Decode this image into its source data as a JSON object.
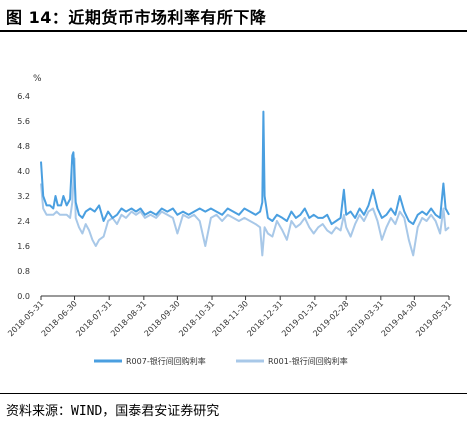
{
  "title": "图 14：近期货币市场利率有所下降",
  "source": "资料来源：WIND，国泰君安证券研究",
  "chart_data": {
    "type": "line",
    "unit_label": "%",
    "ylim": [
      0.0,
      6.4
    ],
    "yticks": [
      "0.0",
      "0.8",
      "1.6",
      "2.4",
      "3.2",
      "4.0",
      "4.8",
      "5.6",
      "6.4"
    ],
    "xlim": [
      "2018-05-31",
      "2019-05-31"
    ],
    "xticks": [
      "2018-05-31",
      "2018-06-30",
      "2018-07-31",
      "2018-08-31",
      "2018-09-30",
      "2018-10-31",
      "2018-11-30",
      "2018-12-31",
      "2019-01-31",
      "2019-02-28",
      "2019-03-31",
      "2019-04-30",
      "2019-05-31"
    ],
    "grid": false,
    "legend_position": "bottom",
    "series": [
      {
        "name": "R007-银行间回购利率",
        "color": "#4a9fe0",
        "points": [
          [
            "2018-05-31",
            4.3
          ],
          [
            "2018-06-02",
            3.2
          ],
          [
            "2018-06-05",
            2.9
          ],
          [
            "2018-06-08",
            2.9
          ],
          [
            "2018-06-11",
            2.8
          ],
          [
            "2018-06-13",
            3.2
          ],
          [
            "2018-06-15",
            2.9
          ],
          [
            "2018-06-18",
            2.9
          ],
          [
            "2018-06-20",
            3.2
          ],
          [
            "2018-06-23",
            2.9
          ],
          [
            "2018-06-26",
            3.1
          ],
          [
            "2018-06-28",
            4.5
          ],
          [
            "2018-06-29",
            4.6
          ],
          [
            "2018-07-01",
            3.0
          ],
          [
            "2018-07-04",
            2.6
          ],
          [
            "2018-07-07",
            2.5
          ],
          [
            "2018-07-10",
            2.7
          ],
          [
            "2018-07-14",
            2.8
          ],
          [
            "2018-07-18",
            2.7
          ],
          [
            "2018-07-22",
            2.9
          ],
          [
            "2018-07-26",
            2.4
          ],
          [
            "2018-07-30",
            2.7
          ],
          [
            "2018-08-03",
            2.5
          ],
          [
            "2018-08-07",
            2.6
          ],
          [
            "2018-08-11",
            2.8
          ],
          [
            "2018-08-15",
            2.7
          ],
          [
            "2018-08-20",
            2.8
          ],
          [
            "2018-08-24",
            2.7
          ],
          [
            "2018-08-28",
            2.8
          ],
          [
            "2018-09-01",
            2.6
          ],
          [
            "2018-09-06",
            2.7
          ],
          [
            "2018-09-11",
            2.6
          ],
          [
            "2018-09-16",
            2.8
          ],
          [
            "2018-09-21",
            2.7
          ],
          [
            "2018-09-26",
            2.8
          ],
          [
            "2018-09-30",
            2.6
          ],
          [
            "2018-10-05",
            2.7
          ],
          [
            "2018-10-10",
            2.6
          ],
          [
            "2018-10-15",
            2.7
          ],
          [
            "2018-10-20",
            2.8
          ],
          [
            "2018-10-25",
            2.7
          ],
          [
            "2018-10-30",
            2.8
          ],
          [
            "2018-11-04",
            2.7
          ],
          [
            "2018-11-09",
            2.6
          ],
          [
            "2018-11-14",
            2.8
          ],
          [
            "2018-11-19",
            2.7
          ],
          [
            "2018-11-24",
            2.6
          ],
          [
            "2018-11-29",
            2.8
          ],
          [
            "2018-12-04",
            2.7
          ],
          [
            "2018-12-09",
            2.6
          ],
          [
            "2018-12-13",
            2.7
          ],
          [
            "2018-12-15",
            3.0
          ],
          [
            "2018-12-16",
            5.9
          ],
          [
            "2018-12-17",
            3.2
          ],
          [
            "2018-12-20",
            2.5
          ],
          [
            "2018-12-24",
            2.4
          ],
          [
            "2018-12-28",
            2.6
          ],
          [
            "2019-01-02",
            2.5
          ],
          [
            "2019-01-06",
            2.4
          ],
          [
            "2019-01-10",
            2.7
          ],
          [
            "2019-01-14",
            2.5
          ],
          [
            "2019-01-18",
            2.6
          ],
          [
            "2019-01-22",
            2.8
          ],
          [
            "2019-01-26",
            2.5
          ],
          [
            "2019-01-30",
            2.6
          ],
          [
            "2019-02-03",
            2.5
          ],
          [
            "2019-02-07",
            2.5
          ],
          [
            "2019-02-11",
            2.6
          ],
          [
            "2019-02-15",
            2.3
          ],
          [
            "2019-02-19",
            2.4
          ],
          [
            "2019-02-23",
            2.5
          ],
          [
            "2019-02-26",
            3.4
          ],
          [
            "2019-02-28",
            2.6
          ],
          [
            "2019-03-04",
            2.7
          ],
          [
            "2019-03-08",
            2.5
          ],
          [
            "2019-03-12",
            2.8
          ],
          [
            "2019-03-16",
            2.6
          ],
          [
            "2019-03-20",
            2.9
          ],
          [
            "2019-03-24",
            3.4
          ],
          [
            "2019-03-28",
            2.8
          ],
          [
            "2019-04-01",
            2.5
          ],
          [
            "2019-04-05",
            2.6
          ],
          [
            "2019-04-09",
            2.8
          ],
          [
            "2019-04-13",
            2.6
          ],
          [
            "2019-04-17",
            3.2
          ],
          [
            "2019-04-21",
            2.7
          ],
          [
            "2019-04-25",
            2.4
          ],
          [
            "2019-04-29",
            2.3
          ],
          [
            "2019-05-03",
            2.6
          ],
          [
            "2019-05-07",
            2.7
          ],
          [
            "2019-05-11",
            2.6
          ],
          [
            "2019-05-15",
            2.8
          ],
          [
            "2019-05-19",
            2.6
          ],
          [
            "2019-05-23",
            2.5
          ],
          [
            "2019-05-26",
            3.6
          ],
          [
            "2019-05-28",
            2.8
          ],
          [
            "2019-05-31",
            2.6
          ]
        ]
      },
      {
        "name": "R001-银行间回购利率",
        "color": "#a8c8e8",
        "points": [
          [
            "2018-05-31",
            3.6
          ],
          [
            "2018-06-02",
            2.8
          ],
          [
            "2018-06-05",
            2.6
          ],
          [
            "2018-06-08",
            2.6
          ],
          [
            "2018-06-11",
            2.6
          ],
          [
            "2018-06-14",
            2.7
          ],
          [
            "2018-06-17",
            2.6
          ],
          [
            "2018-06-20",
            2.6
          ],
          [
            "2018-06-23",
            2.6
          ],
          [
            "2018-06-26",
            2.5
          ],
          [
            "2018-06-28",
            3.0
          ],
          [
            "2018-06-30",
            4.4
          ],
          [
            "2018-07-01",
            2.5
          ],
          [
            "2018-07-04",
            2.2
          ],
          [
            "2018-07-07",
            2.0
          ],
          [
            "2018-07-10",
            2.3
          ],
          [
            "2018-07-13",
            2.1
          ],
          [
            "2018-07-16",
            1.8
          ],
          [
            "2018-07-19",
            1.6
          ],
          [
            "2018-07-22",
            1.8
          ],
          [
            "2018-07-26",
            1.9
          ],
          [
            "2018-07-30",
            2.4
          ],
          [
            "2018-08-03",
            2.5
          ],
          [
            "2018-08-07",
            2.3
          ],
          [
            "2018-08-11",
            2.6
          ],
          [
            "2018-08-15",
            2.5
          ],
          [
            "2018-08-20",
            2.7
          ],
          [
            "2018-08-24",
            2.6
          ],
          [
            "2018-08-28",
            2.7
          ],
          [
            "2018-09-01",
            2.5
          ],
          [
            "2018-09-06",
            2.6
          ],
          [
            "2018-09-11",
            2.5
          ],
          [
            "2018-09-16",
            2.7
          ],
          [
            "2018-09-21",
            2.6
          ],
          [
            "2018-09-26",
            2.5
          ],
          [
            "2018-09-30",
            2.0
          ],
          [
            "2018-10-05",
            2.6
          ],
          [
            "2018-10-10",
            2.5
          ],
          [
            "2018-10-15",
            2.6
          ],
          [
            "2018-10-20",
            2.4
          ],
          [
            "2018-10-25",
            1.6
          ],
          [
            "2018-10-30",
            2.5
          ],
          [
            "2018-11-04",
            2.6
          ],
          [
            "2018-11-09",
            2.4
          ],
          [
            "2018-11-14",
            2.6
          ],
          [
            "2018-11-19",
            2.5
          ],
          [
            "2018-11-24",
            2.4
          ],
          [
            "2018-11-29",
            2.5
          ],
          [
            "2018-12-04",
            2.4
          ],
          [
            "2018-12-09",
            2.3
          ],
          [
            "2018-12-13",
            2.2
          ],
          [
            "2018-12-15",
            1.3
          ],
          [
            "2018-12-17",
            2.2
          ],
          [
            "2018-12-20",
            2.0
          ],
          [
            "2018-12-24",
            1.9
          ],
          [
            "2018-12-28",
            2.4
          ],
          [
            "2019-01-02",
            2.1
          ],
          [
            "2019-01-06",
            1.8
          ],
          [
            "2019-01-10",
            2.4
          ],
          [
            "2019-01-14",
            2.2
          ],
          [
            "2019-01-18",
            2.3
          ],
          [
            "2019-01-22",
            2.5
          ],
          [
            "2019-01-26",
            2.2
          ],
          [
            "2019-01-30",
            2.0
          ],
          [
            "2019-02-03",
            2.2
          ],
          [
            "2019-02-07",
            2.3
          ],
          [
            "2019-02-11",
            2.1
          ],
          [
            "2019-02-15",
            2.0
          ],
          [
            "2019-02-19",
            2.2
          ],
          [
            "2019-02-23",
            2.1
          ],
          [
            "2019-02-26",
            2.6
          ],
          [
            "2019-02-28",
            2.2
          ],
          [
            "2019-03-04",
            1.9
          ],
          [
            "2019-03-08",
            2.3
          ],
          [
            "2019-03-12",
            2.6
          ],
          [
            "2019-03-16",
            2.4
          ],
          [
            "2019-03-20",
            2.7
          ],
          [
            "2019-03-24",
            2.8
          ],
          [
            "2019-03-28",
            2.4
          ],
          [
            "2019-04-01",
            1.8
          ],
          [
            "2019-04-05",
            2.2
          ],
          [
            "2019-04-09",
            2.5
          ],
          [
            "2019-04-13",
            2.3
          ],
          [
            "2019-04-17",
            2.7
          ],
          [
            "2019-04-21",
            2.5
          ],
          [
            "2019-04-25",
            1.8
          ],
          [
            "2019-04-29",
            1.3
          ],
          [
            "2019-05-03",
            2.2
          ],
          [
            "2019-05-07",
            2.5
          ],
          [
            "2019-05-11",
            2.4
          ],
          [
            "2019-05-15",
            2.6
          ],
          [
            "2019-05-19",
            2.4
          ],
          [
            "2019-05-23",
            2.0
          ],
          [
            "2019-05-26",
            2.8
          ],
          [
            "2019-05-28",
            2.1
          ],
          [
            "2019-05-31",
            2.2
          ]
        ]
      }
    ]
  }
}
